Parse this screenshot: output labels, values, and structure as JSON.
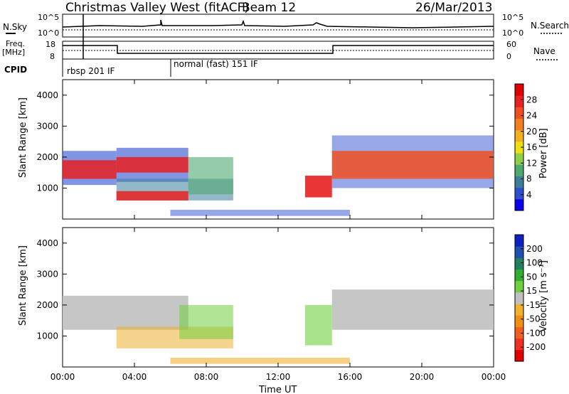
{
  "header": {
    "station": "Christmas Valley West (fitACF)",
    "beam": "Beam 12",
    "date": "26/Mar/2013"
  },
  "status_panels": {
    "nsky_label": "N.Sky",
    "nsky_ticks": [
      "10^5",
      "10^0"
    ],
    "nsearch_label": "N.Search",
    "freq_label_1": "Freq.",
    "freq_label_2": "[MHz]",
    "freq_ticks": [
      "18",
      "8"
    ],
    "nave_label": "Nave",
    "nave_ticks": [
      "60",
      "0"
    ],
    "cpid_label": "CPID",
    "cpid_1": "rbsp 201 IF",
    "cpid_2": "normal (fast) 151 IF"
  },
  "chart_data": [
    {
      "type": "heatmap",
      "title": "",
      "ylabel": "Slant Range [km]",
      "xlabel": "",
      "ylim": [
        0,
        4500
      ],
      "y_ticks": [
        1000,
        2000,
        3000,
        4000
      ],
      "x_ticks": [
        "00:00",
        "04:00",
        "08:00",
        "12:00",
        "16:00",
        "20:00",
        "00:00"
      ],
      "colorbar": {
        "label": "Power [dB]",
        "ticks": [
          "4",
          "8",
          "12",
          "16",
          "20",
          "24",
          "28"
        ],
        "colors": [
          "#0b00e8",
          "#2f4fd0",
          "#3a7f9a",
          "#4fa870",
          "#8fcf4a",
          "#f0e010",
          "#f5b020",
          "#f08020",
          "#f05020",
          "#e82020",
          "#e00000"
        ]
      }
    },
    {
      "type": "heatmap",
      "title": "",
      "ylabel": "Slant Range [km]",
      "xlabel": "Time UT",
      "ylim": [
        0,
        4500
      ],
      "y_ticks": [
        1000,
        2000,
        3000,
        4000
      ],
      "x_ticks": [
        "00:00",
        "04:00",
        "08:00",
        "12:00",
        "16:00",
        "20:00",
        "00:00"
      ],
      "colorbar": {
        "label": "Velocity [m s⁻¹]",
        "ticks": [
          "200",
          "100",
          "50",
          "15",
          "-15",
          "-50",
          "-100",
          "-200"
        ],
        "colors": [
          "#1020c0",
          "#2050b0",
          "#208060",
          "#30b030",
          "#70d040",
          "#c0c0c0",
          "#f0b030",
          "#f09010",
          "#f06020",
          "#f03020",
          "#e00000"
        ]
      }
    }
  ]
}
